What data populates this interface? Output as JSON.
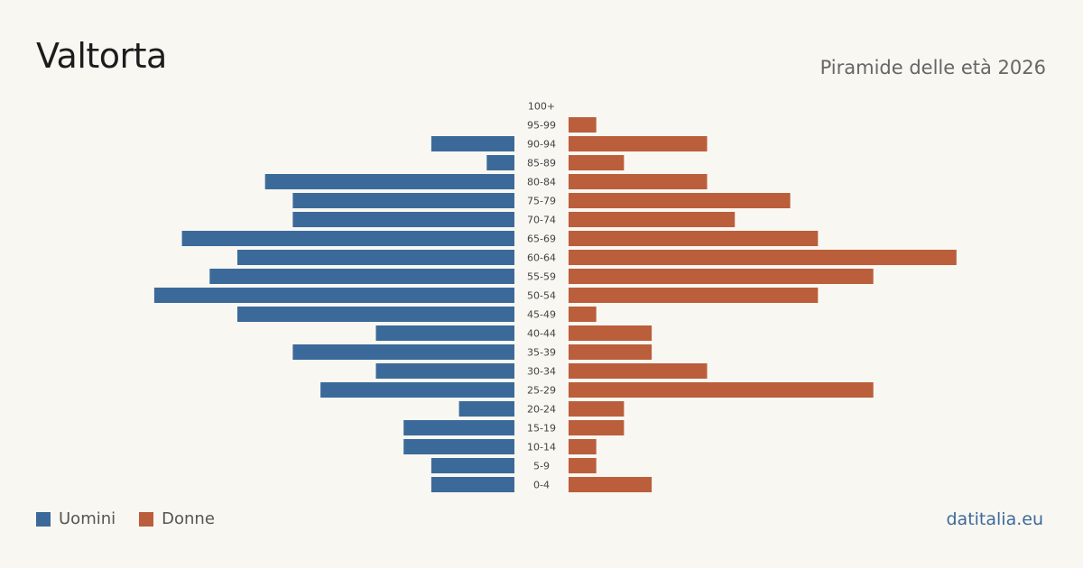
{
  "header": {
    "title": "Valtorta",
    "subtitle": "Piramide delle età 2026"
  },
  "legend": {
    "items": [
      {
        "label": "Uomini",
        "color": "#3b6a9a"
      },
      {
        "label": "Donne",
        "color": "#bb5e3b"
      }
    ]
  },
  "footer": {
    "source": "datitalia.eu"
  },
  "chart_data": {
    "type": "bar",
    "orientation": "horizontal-pyramid",
    "categories": [
      "100+",
      "95-99",
      "90-94",
      "85-89",
      "80-84",
      "75-79",
      "70-74",
      "65-69",
      "60-64",
      "55-59",
      "50-54",
      "45-49",
      "40-44",
      "35-39",
      "30-34",
      "25-29",
      "20-24",
      "15-19",
      "10-14",
      "5-9",
      "0-4"
    ],
    "series": [
      {
        "name": "Uomini",
        "color": "#3b6a9a",
        "values": [
          0,
          0,
          3,
          1,
          9,
          8,
          8,
          12,
          10,
          11,
          13,
          10,
          5,
          8,
          5,
          7,
          2,
          4,
          4,
          3,
          3
        ]
      },
      {
        "name": "Donne",
        "color": "#bb5e3b",
        "values": [
          0,
          1,
          5,
          2,
          5,
          8,
          6,
          9,
          14,
          11,
          9,
          1,
          3,
          3,
          5,
          11,
          2,
          2,
          1,
          1,
          3
        ]
      }
    ],
    "xlim": [
      0,
      14
    ],
    "legend_position": "bottom-left",
    "grid": false
  }
}
